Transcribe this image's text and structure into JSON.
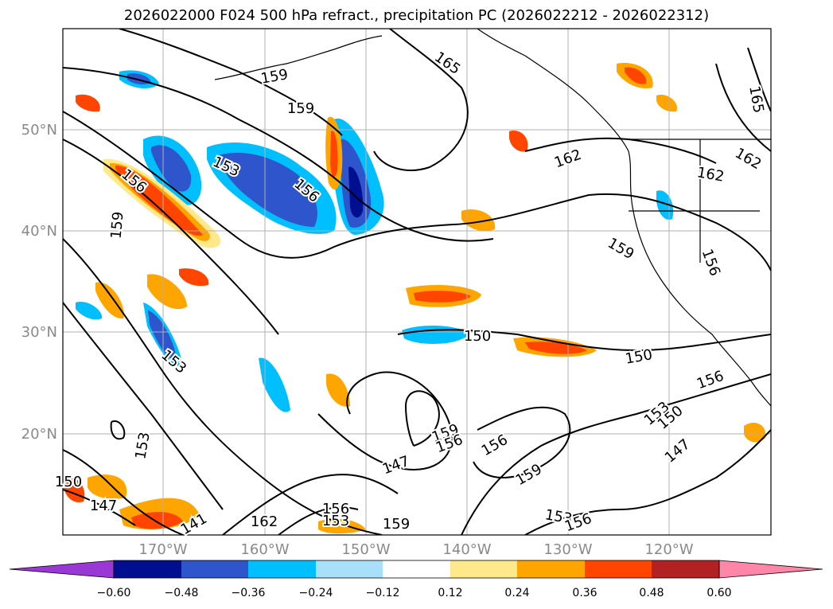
{
  "title": "2026022000 F024 500 hPa refract., precipitation PC (2026022212 - 2026022312)",
  "map": {
    "lat_labels": [
      "50°N",
      "40°N",
      "30°N",
      "20°N"
    ],
    "lon_labels": [
      "170°W",
      "160°W",
      "150°W",
      "140°W",
      "130°W",
      "120°W"
    ],
    "contour_labels": [
      "165",
      "159",
      "159",
      "156",
      "153",
      "156",
      "159",
      "162",
      "162",
      "162",
      "165",
      "159",
      "156",
      "150",
      "150",
      "153",
      "156",
      "153",
      "150",
      "147",
      "159",
      "156",
      "156",
      "159",
      "153",
      "156",
      "147",
      "159",
      "162",
      "156",
      "153",
      "147",
      "141",
      "150",
      "153"
    ],
    "colors": {
      "coast": "#000000",
      "grid": "#b0b0b0",
      "contour": "#000000"
    }
  },
  "colorbar": {
    "colors": [
      "#9a38d6",
      "#000f8f",
      "#2f55cc",
      "#00bfff",
      "#a8e0fa",
      "#ffffff",
      "#ffe98a",
      "#ffa500",
      "#ff4500",
      "#b22222",
      "#ff86a8"
    ],
    "ticks": [
      "−0.60",
      "−0.48",
      "−0.36",
      "−0.24",
      "−0.12",
      "0.12",
      "0.24",
      "0.36",
      "0.48",
      "0.60"
    ]
  }
}
